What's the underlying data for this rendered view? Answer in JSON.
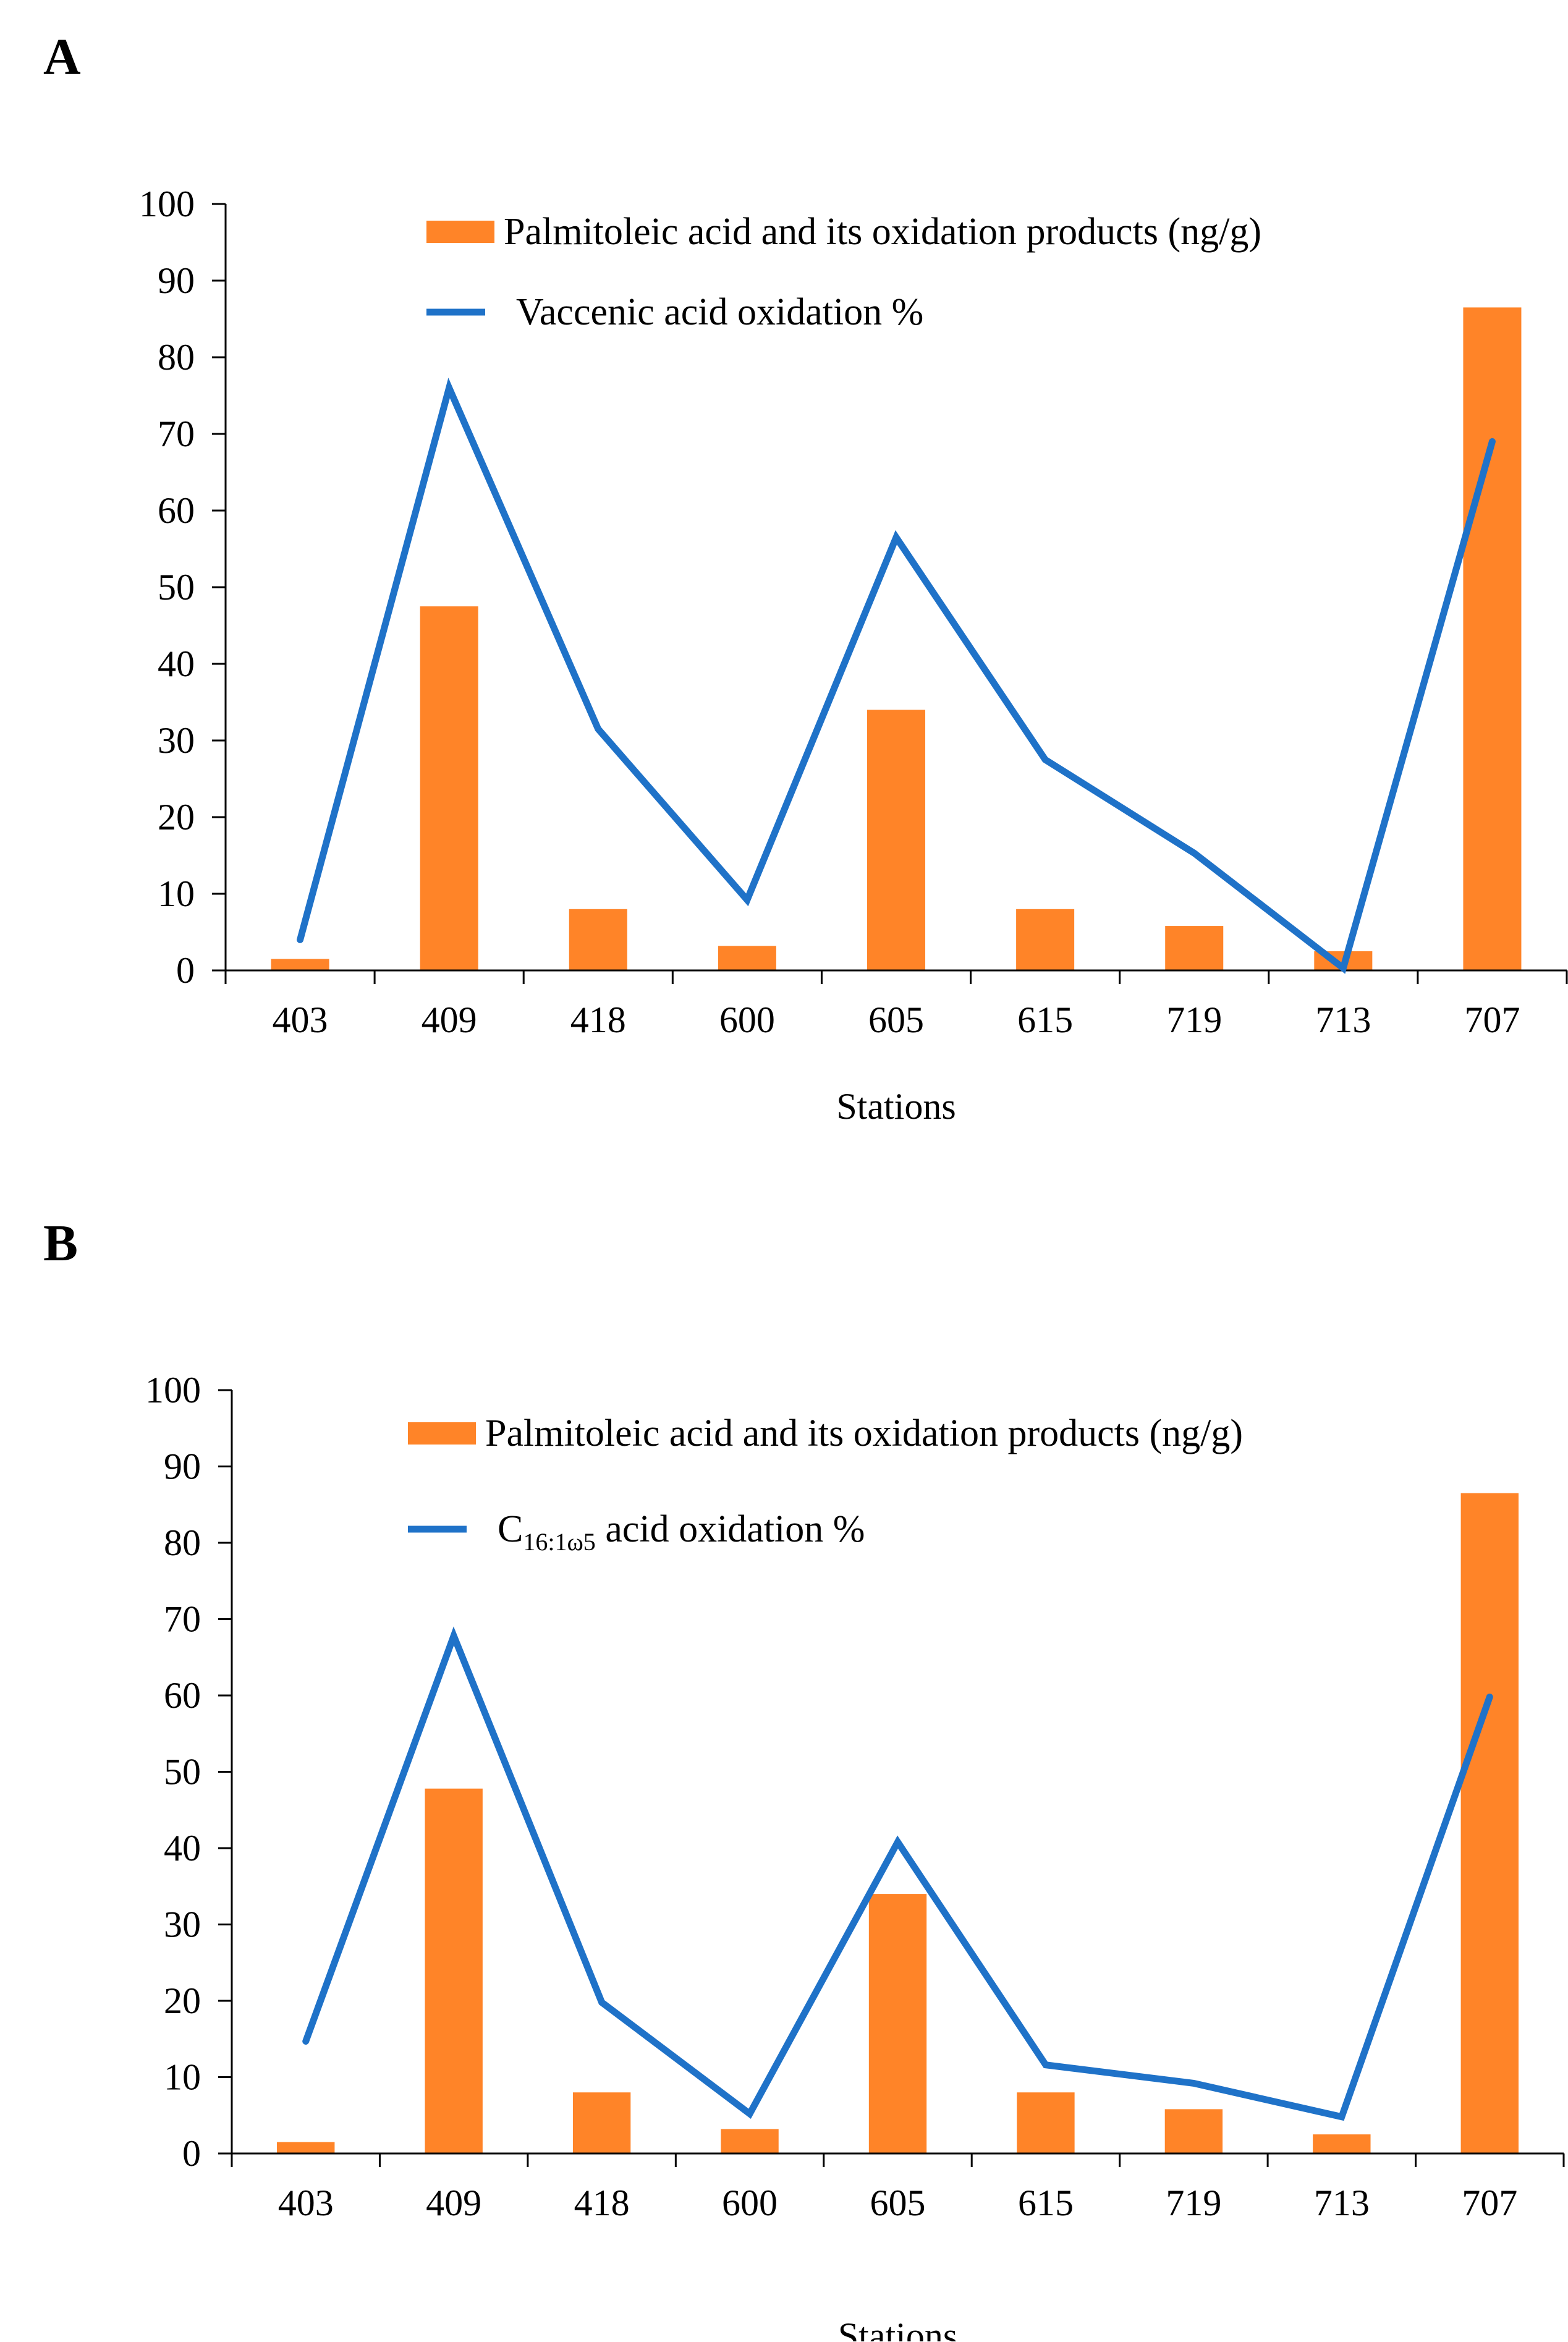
{
  "chart_data": [
    {
      "type": "bar+line",
      "panel_label": "A",
      "categories": [
        "403",
        "409",
        "418",
        "600",
        "605",
        "615",
        "719",
        "713",
        "707"
      ],
      "series": [
        {
          "name": "Palmitoleic acid and its oxidation products (ng/g)",
          "kind": "bar",
          "color": "#FF8428",
          "values": [
            1.5,
            47.5,
            8.0,
            3.2,
            34.0,
            8.0,
            5.8,
            2.5,
            86.5
          ]
        },
        {
          "name": "Vaccenic acid oxidation %",
          "kind": "line",
          "color": "#1F72C8",
          "values": [
            4.0,
            76.0,
            31.5,
            9.2,
            56.5,
            27.5,
            15.3,
            0.3,
            69.0
          ]
        }
      ],
      "legend": [
        {
          "label": "Palmitoleic acid and its oxidation products (ng/g)"
        },
        {
          "label": "Vaccenic acid oxidation %"
        }
      ],
      "xlabel": "Stations",
      "ylabel": "",
      "ylim": [
        0,
        100
      ],
      "yticks": [
        "0",
        "10",
        "20",
        "30",
        "40",
        "50",
        "60",
        "70",
        "80",
        "90",
        "100"
      ],
      "grid": false,
      "legend_position": "top-center"
    },
    {
      "type": "bar+line",
      "panel_label": "B",
      "categories": [
        "403",
        "409",
        "418",
        "600",
        "605",
        "615",
        "719",
        "713",
        "707"
      ],
      "series": [
        {
          "name": "Palmitoleic acid and its oxidation products (ng/g)",
          "kind": "bar",
          "color": "#FF8428",
          "values": [
            1.5,
            47.8,
            8.0,
            3.2,
            34.0,
            8.0,
            5.8,
            2.5,
            86.5
          ]
        },
        {
          "name": "C16:1ω5 acid oxidation %",
          "kind": "line",
          "color": "#1F72C8",
          "values": [
            14.7,
            67.8,
            19.8,
            5.2,
            40.8,
            11.6,
            9.2,
            4.8,
            59.8
          ]
        }
      ],
      "legend": [
        {
          "label": "Palmitoleic acid and its oxidation products (ng/g)"
        },
        {
          "label": "acid oxidation %",
          "prefix": "C",
          "subscript": "16:1ω5"
        }
      ],
      "xlabel": "Stations",
      "ylabel": "",
      "ylim": [
        0,
        100
      ],
      "yticks": [
        "0",
        "10",
        "20",
        "30",
        "40",
        "50",
        "60",
        "70",
        "80",
        "90",
        "100"
      ],
      "grid": false,
      "legend_position": "top-center"
    }
  ]
}
